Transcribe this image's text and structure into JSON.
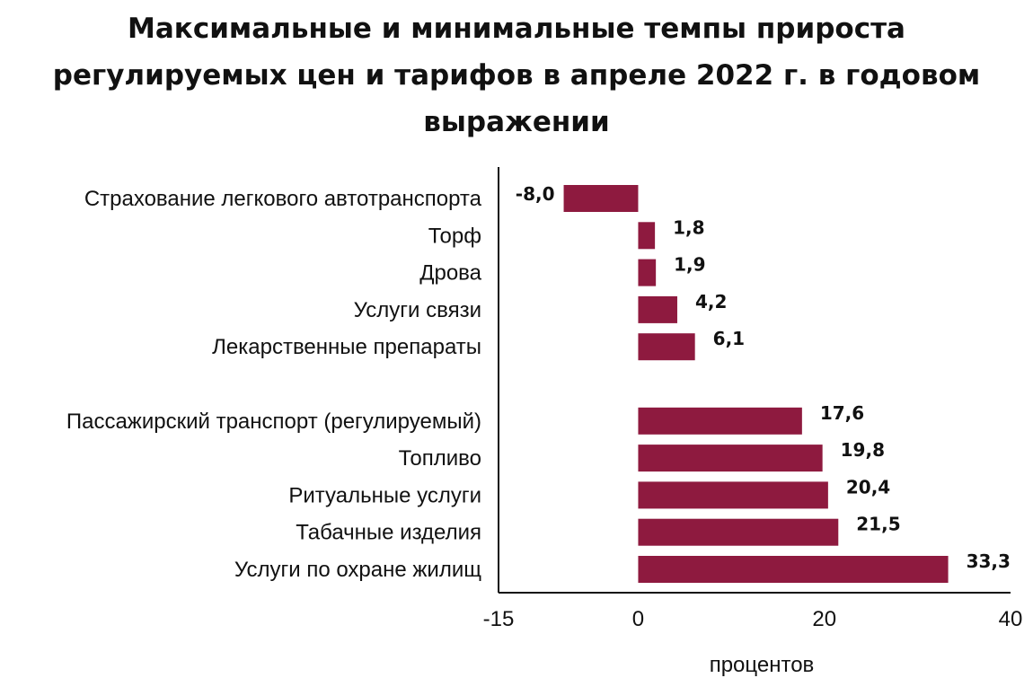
{
  "chart_data": {
    "type": "bar",
    "orientation": "horizontal",
    "title": "Максимальные и минимальные темпы прироста регулируемых цен и тарифов в апреле 2022 г. в годовом выражении",
    "xlabel": "процентов",
    "ylabel": "",
    "xlim": [
      -15,
      40
    ],
    "x_ticks": [
      {
        "value": -15,
        "label": "-15"
      },
      {
        "value": 0,
        "label": "0"
      },
      {
        "value": 20,
        "label": "20"
      },
      {
        "value": 40,
        "label": "40"
      }
    ],
    "grid": false,
    "groups": [
      {
        "categories": [
          "Страхование легкового автотранспорта",
          "Торф",
          "Дрова",
          "Услуги связи",
          "Лекарственные препараты"
        ],
        "values": [
          -8.0,
          1.8,
          1.9,
          4.2,
          6.1
        ],
        "value_labels": [
          "-8,0",
          "1,8",
          "1,9",
          "4,2",
          "6,1"
        ]
      },
      {
        "categories": [
          "Пассажирский транспорт (регулируемый)",
          "Топливо",
          "Ритуальные услуги",
          "Табачные изделия",
          "Услуги по охране жилищ"
        ],
        "values": [
          17.6,
          19.8,
          20.4,
          21.5,
          33.3
        ],
        "value_labels": [
          "17,6",
          "19,8",
          "20,4",
          "21,5",
          "33,3"
        ]
      }
    ],
    "bar_color": "#8e1a3f",
    "axis_color": "#111111"
  }
}
